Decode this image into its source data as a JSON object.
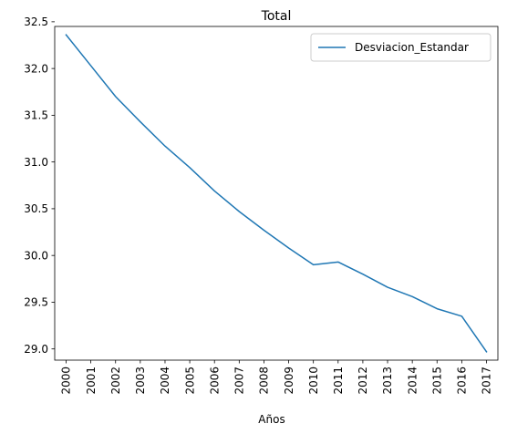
{
  "chart_data": {
    "type": "line",
    "title": "Total",
    "xlabel": "Años",
    "ylabel": "",
    "categories": [
      "2000",
      "2001",
      "2002",
      "2003",
      "2004",
      "2005",
      "2006",
      "2007",
      "2008",
      "2009",
      "2010",
      "2011",
      "2012",
      "2013",
      "2014",
      "2015",
      "2016",
      "2017"
    ],
    "series": [
      {
        "name": "Desviacion_Estandar",
        "color": "#1f77b4",
        "values": [
          32.36,
          32.03,
          31.7,
          31.43,
          31.17,
          30.94,
          30.69,
          30.47,
          30.27,
          30.08,
          29.9,
          29.93,
          29.8,
          29.66,
          29.56,
          29.43,
          29.35,
          28.97
        ]
      }
    ],
    "ylim": [
      28.88,
      32.45
    ],
    "yticks": [
      29.0,
      29.5,
      30.0,
      30.5,
      31.0,
      31.5,
      32.0,
      32.5
    ],
    "ytick_labels": [
      "29.0",
      "29.5",
      "30.0",
      "30.5",
      "31.0",
      "31.5",
      "32.0",
      "32.5"
    ],
    "grid": false,
    "legend_position": "upper-right",
    "xtick_rotation": "vertical"
  }
}
